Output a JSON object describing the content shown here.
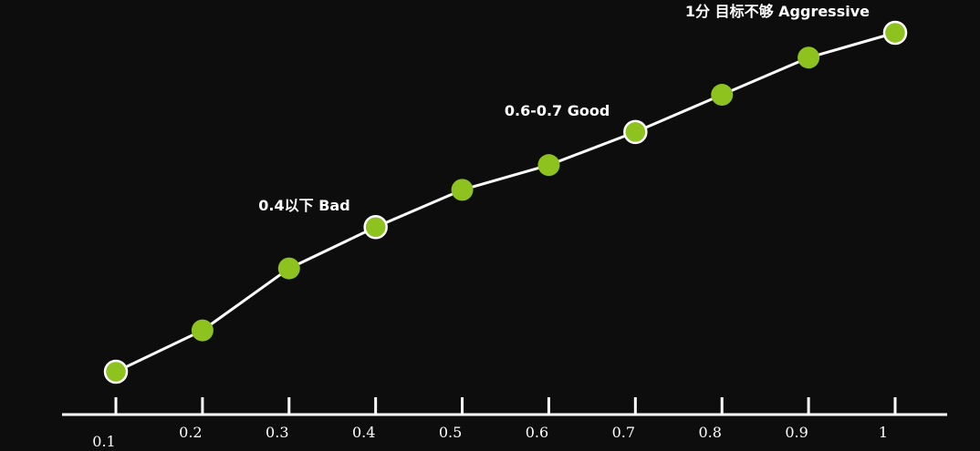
{
  "chart_data": {
    "type": "line",
    "x": [
      0.1,
      0.2,
      0.3,
      0.4,
      0.5,
      0.6,
      0.7,
      0.8,
      0.9,
      1
    ],
    "x_tick_labels": [
      "0.1",
      "0.2",
      "0.3",
      "0.4",
      "0.5",
      "0.6",
      "0.7",
      "0.8",
      "0.9",
      "1"
    ],
    "values": [
      0.1,
      0.2,
      0.35,
      0.45,
      0.54,
      0.6,
      0.68,
      0.77,
      0.86,
      0.92
    ],
    "highlighted_points": [
      0,
      3,
      6,
      9
    ],
    "annotations": [
      {
        "text": "0.4以下 Bad",
        "point": 3
      },
      {
        "text": "0.6-0.7 Good",
        "point": 6
      },
      {
        "text": "1分 目标不够 Aggressive",
        "point": 9
      }
    ],
    "title": "",
    "xlabel": "",
    "ylabel": "",
    "grid": false,
    "colors": {
      "background": "#0d0d0d",
      "line": "#ffffff",
      "marker": "#8dc21f",
      "highlight_stroke": "#ffffff",
      "axis": "#ffffff",
      "text": "#ffffff"
    }
  }
}
